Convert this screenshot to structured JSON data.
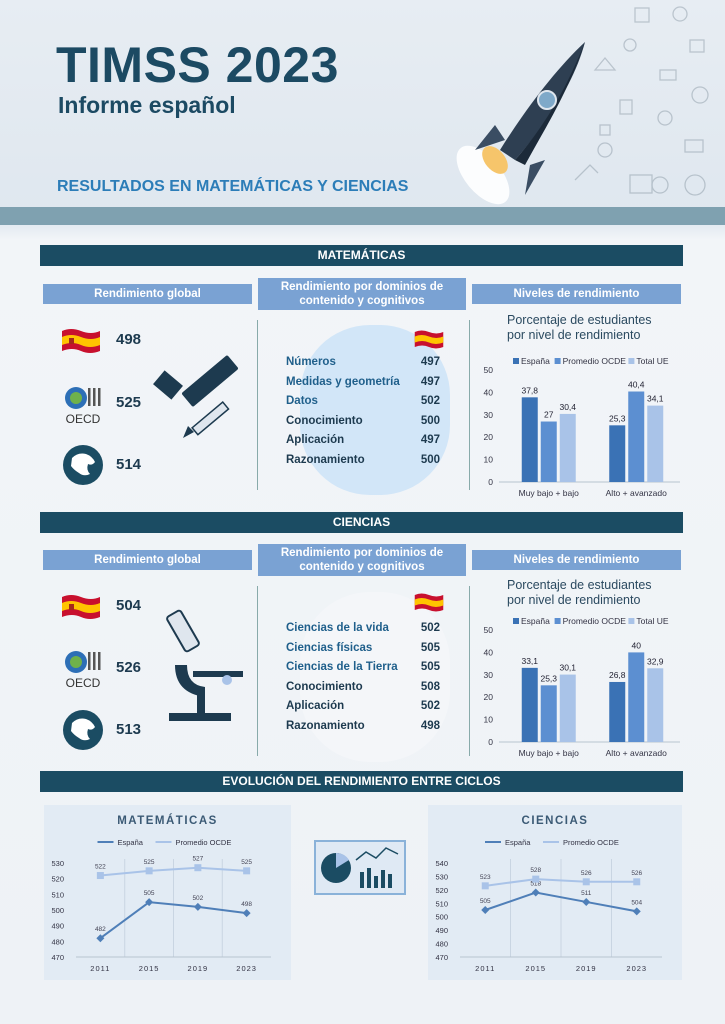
{
  "header": {
    "title": "TIMSS 2023",
    "subtitle": "Informe español",
    "section_heading": "RESULTADOS EN MATEMÁTICAS Y CIENCIAS"
  },
  "math": {
    "bar_title": "MATEMÁTICAS",
    "global_header": "Rendimiento global",
    "domains_header": "Rendimiento por dominios de contenido y cognitivos",
    "levels_header": "Niveles de rendimiento",
    "scores": {
      "spain": "498",
      "oecd": "525",
      "eu": "514"
    },
    "domains": [
      {
        "label": "Números",
        "value": "497",
        "type": "content"
      },
      {
        "label": "Medidas y geometría",
        "value": "497",
        "type": "content"
      },
      {
        "label": "Datos",
        "value": "502",
        "type": "content"
      },
      {
        "label": "Conocimiento",
        "value": "500",
        "type": "cognitive"
      },
      {
        "label": "Aplicación",
        "value": "497",
        "type": "cognitive"
      },
      {
        "label": "Razonamiento",
        "value": "500",
        "type": "cognitive"
      }
    ],
    "levels_caption_1": "Porcentaje de estudiantes",
    "levels_caption_2": "por nivel de rendimiento"
  },
  "science": {
    "bar_title": "CIENCIAS",
    "global_header": "Rendimiento global",
    "domains_header": "Rendimiento por dominios de contenido y cognitivos",
    "levels_header": "Niveles de rendimiento",
    "scores": {
      "spain": "504",
      "oecd": "526",
      "eu": "513"
    },
    "domains": [
      {
        "label": "Ciencias de la vida",
        "value": "502",
        "type": "content"
      },
      {
        "label": "Ciencias físicas",
        "value": "505",
        "type": "content"
      },
      {
        "label": "Ciencias de la Tierra",
        "value": "505",
        "type": "content"
      },
      {
        "label": "Conocimiento",
        "value": "508",
        "type": "cognitive"
      },
      {
        "label": "Aplicación",
        "value": "502",
        "type": "cognitive"
      },
      {
        "label": "Razonamiento",
        "value": "498",
        "type": "cognitive"
      }
    ],
    "levels_caption_1": "Porcentaje de estudiantes",
    "levels_caption_2": "por nivel de rendimiento"
  },
  "evolution": {
    "bar_title": "EVOLUCIÓN DEL RENDIMIENTO ENTRE CICLOS"
  },
  "oecd_logo_text": "OECD",
  "colors": {
    "spain": "#3a72b5",
    "oecd": "#5c8fd1",
    "eu": "#a9c3e8",
    "dark": "#1b4c63"
  },
  "chart_data": [
    {
      "type": "bar",
      "categories": [
        "Muy bajo + bajo",
        "Alto + avanzado"
      ],
      "series": [
        {
          "name": "España",
          "values": [
            37.8,
            25.3
          ]
        },
        {
          "name": "Promedio OCDE",
          "values": [
            27,
            40.4
          ]
        },
        {
          "name": "Total UE",
          "values": [
            30.4,
            34.1
          ]
        }
      ],
      "labels": [
        [
          "37,8",
          "25,3"
        ],
        [
          "27",
          "40,4"
        ],
        [
          "30,4",
          "34,1"
        ]
      ],
      "ylim": [
        0,
        50
      ],
      "yticks": [
        0,
        10,
        20,
        30,
        40,
        50
      ]
    },
    {
      "type": "bar",
      "categories": [
        "Muy bajo + bajo",
        "Alto + avanzado"
      ],
      "series": [
        {
          "name": "España",
          "values": [
            33.1,
            26.8
          ]
        },
        {
          "name": "Promedio OCDE",
          "values": [
            25.3,
            40
          ]
        },
        {
          "name": "Total UE",
          "values": [
            30.1,
            32.9
          ]
        }
      ],
      "labels": [
        [
          "33,1",
          "26,8"
        ],
        [
          "25,3",
          "40"
        ],
        [
          "30,1",
          "32,9"
        ]
      ],
      "ylim": [
        0,
        50
      ],
      "yticks": [
        0,
        10,
        20,
        30,
        40,
        50
      ]
    },
    {
      "type": "line",
      "title": "MATEMÁTICAS",
      "x": [
        "2011",
        "2015",
        "2019",
        "2023"
      ],
      "series": [
        {
          "name": "España",
          "values": [
            482,
            505,
            502,
            498
          ]
        },
        {
          "name": "Promedio OCDE",
          "values": [
            522,
            525,
            527,
            525
          ]
        }
      ],
      "ylim": [
        470,
        530
      ],
      "yticks": [
        470,
        480,
        490,
        500,
        510,
        520,
        530
      ]
    },
    {
      "type": "line",
      "title": "CIENCIAS",
      "x": [
        "2011",
        "2015",
        "2019",
        "2023"
      ],
      "series": [
        {
          "name": "España",
          "values": [
            505,
            518,
            511,
            504
          ]
        },
        {
          "name": "Promedio OCDE",
          "values": [
            523,
            528,
            526,
            526
          ]
        }
      ],
      "ylim": [
        470,
        540
      ],
      "yticks": [
        470,
        480,
        490,
        500,
        510,
        520,
        530,
        540
      ]
    }
  ]
}
